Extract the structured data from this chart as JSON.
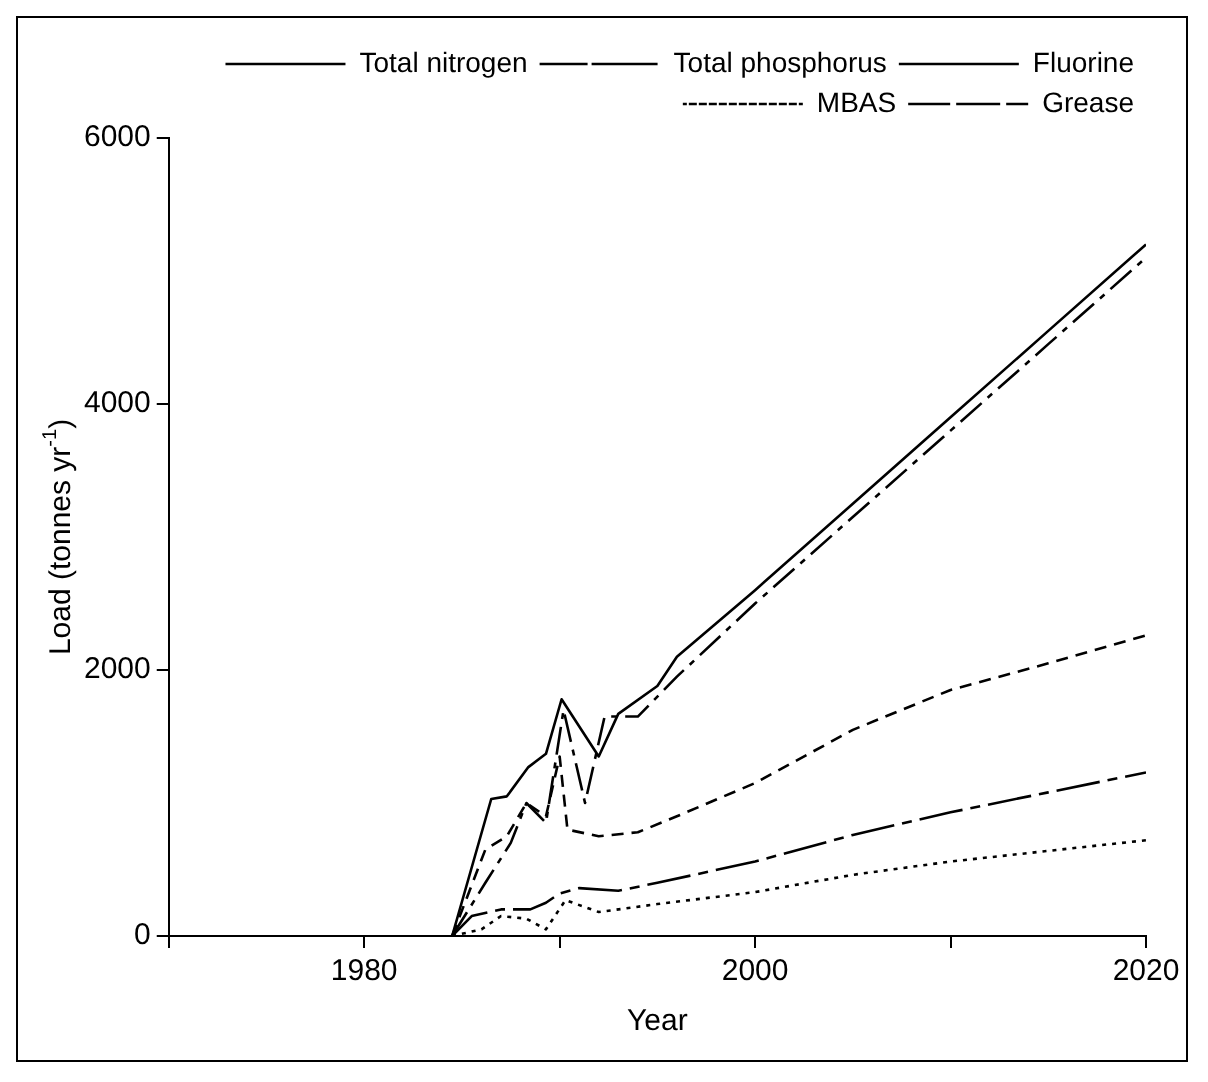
{
  "chart_data": {
    "type": "line",
    "xlabel": "Year",
    "ylabel": "Load (tonnes yr$^{-1}$)",
    "xlim": [
      1970,
      2020
    ],
    "xticks": [
      {
        "value": 1970,
        "label": null
      },
      1980,
      {
        "value": 1990,
        "label": null
      },
      2000,
      {
        "value": 2010,
        "label": null
      },
      2020
    ],
    "ylim": [
      0,
      6000
    ],
    "yticks": [
      0,
      2000,
      4000,
      6000
    ],
    "grid": false,
    "legend": "top right",
    "marker": "none",
    "series": [
      {
        "name": "Total nitrogen",
        "color": "#000000",
        "line_style": "solid",
        "x": [
          1984.5,
          1986.5,
          1987.3,
          1988.4,
          1989.3,
          1990.1,
          1992,
          1993,
          1995,
          1996,
          2000,
          2005,
          2010,
          2015,
          2020
        ],
        "values": [
          0,
          1030,
          1050,
          1270,
          1370,
          1780,
          1350,
          1670,
          1880,
          2100,
          2600,
          3250,
          3900,
          4550,
          5200
        ]
      },
      {
        "name": "Total phosphorus",
        "color": "#000000",
        "line_style": "dashed",
        "x": [
          1984.5,
          1985.5,
          1987,
          1988.5,
          1989.3,
          1990,
          1991,
          1993,
          1995,
          2000,
          2005,
          2010,
          2015,
          2020
        ],
        "values": [
          0,
          150,
          200,
          200,
          250,
          320,
          360,
          340,
          400,
          560,
          760,
          930,
          1080,
          1230
        ]
      },
      {
        "name": "Fluorine",
        "color": "#000000",
        "line_style": "dashed",
        "x": [
          1984.5,
          1986.2,
          1987.3,
          1988.3,
          1989.3,
          1990,
          1990.4,
          1992,
          1994,
          1996,
          2000,
          2005,
          2010,
          2015,
          2020
        ],
        "values": [
          0,
          650,
          750,
          1000,
          900,
          1350,
          800,
          750,
          780,
          900,
          1150,
          1550,
          1850,
          2050,
          2260
        ]
      },
      {
        "name": "MBAS",
        "color": "#000000",
        "line_style": "dotted",
        "x": [
          1984.5,
          1986,
          1987,
          1988.3,
          1989.3,
          1990.3,
          1992,
          1995,
          2000,
          2005,
          2010,
          2015,
          2020
        ],
        "values": [
          0,
          50,
          150,
          130,
          50,
          270,
          180,
          240,
          330,
          460,
          560,
          640,
          720
        ]
      },
      {
        "name": "Grease",
        "color": "#000000",
        "line_style": "dashed",
        "x": [
          1984.5,
          1986.2,
          1987.5,
          1988.3,
          1989.3,
          1990.2,
          1991.3,
          1992.3,
          1994,
          1996,
          2000,
          2005,
          2010,
          2015,
          2020
        ],
        "values": [
          0,
          400,
          700,
          1000,
          850,
          1700,
          1000,
          1650,
          1650,
          1950,
          2500,
          3150,
          3800,
          4450,
          5100
        ]
      }
    ]
  }
}
